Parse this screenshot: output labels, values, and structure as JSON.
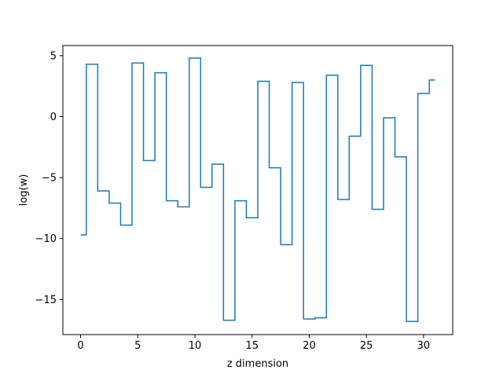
{
  "chart_data": {
    "type": "line",
    "drawstyle": "steps-mid",
    "xlabel": "z dimension",
    "ylabel": "log(w)",
    "xlim": [
      -1.55,
      32.55
    ],
    "ylim": [
      -17.88,
      5.83
    ],
    "xticks": [
      0,
      5,
      10,
      15,
      20,
      25,
      30
    ],
    "xtick_labels": [
      "0",
      "5",
      "10",
      "15",
      "20",
      "25",
      "30"
    ],
    "yticks": [
      5,
      0,
      -5,
      -10,
      -15
    ],
    "ytick_labels": [
      "5",
      "0",
      "−5",
      "−10",
      "−15"
    ],
    "grid": false,
    "series": [
      {
        "color": "#1f77b4",
        "x": [
          0,
          1,
          2,
          3,
          4,
          5,
          6,
          7,
          8,
          9,
          10,
          11,
          12,
          13,
          14,
          15,
          16,
          17,
          18,
          19,
          20,
          21,
          22,
          23,
          24,
          25,
          26,
          27,
          28,
          29,
          30,
          31
        ],
        "y": [
          -9.7,
          4.3,
          -6.1,
          -7.1,
          -8.9,
          4.4,
          -3.6,
          3.6,
          -6.9,
          -7.4,
          4.8,
          -5.8,
          -3.9,
          -16.7,
          -6.9,
          -8.3,
          2.9,
          -4.2,
          -10.5,
          2.8,
          -16.6,
          -16.5,
          3.4,
          -6.8,
          -1.6,
          4.2,
          -7.6,
          -0.1,
          -3.3,
          -16.8,
          1.9,
          3.0
        ]
      }
    ]
  }
}
